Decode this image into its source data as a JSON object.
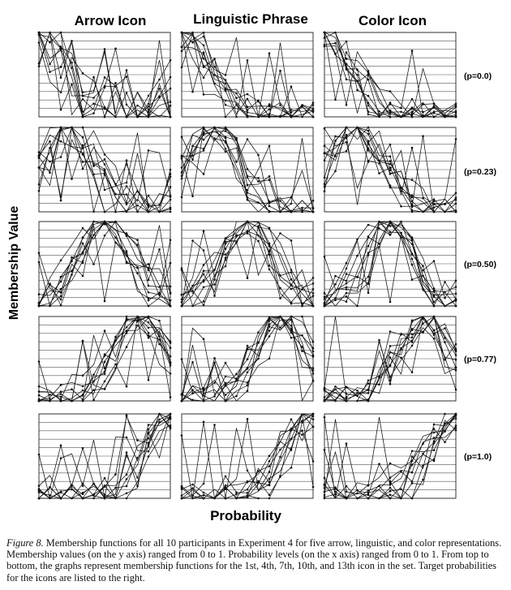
{
  "figure": {
    "column_titles": [
      "Arrow Icon",
      "Linguistic Phrase",
      "Color Icon"
    ],
    "row_labels": [
      "(p=0.0)",
      "(p=0.23)",
      "(p=0.50)",
      "(p=0.77)",
      "(p=1.0)"
    ],
    "y_axis_title": "Membership Value",
    "x_axis_title": "Probability"
  },
  "caption": {
    "lead": "Figure 8.",
    "text": " Membership functions for all 10 participants in Experiment 4 for five arrow, linguistic, and color representations. Membership values (on the y axis) ranged from 0 to 1. Probability levels (on the x axis) ranged from 0 to 1. From top to bottom, the graphs represent membership functions for the 1st, 4th, 7th, 10th, and 13th icon in the set. Target probabilities for the icons are listed to the right."
  },
  "chart_data": {
    "type": "line",
    "layout": "small-multiples 5 rows x 3 columns",
    "columns": [
      "Arrow Icon",
      "Linguistic Phrase",
      "Color Icon"
    ],
    "rows": [
      "(p=0.0)",
      "(p=0.23)",
      "(p=0.50)",
      "(p=0.77)",
      "(p=1.0)"
    ],
    "xlabel": "Probability",
    "ylabel": "Membership Value",
    "xlim": [
      0,
      1
    ],
    "ylim": [
      0,
      1
    ],
    "x": [
      0,
      0.0833,
      0.1667,
      0.25,
      0.3333,
      0.4167,
      0.5,
      0.5833,
      0.6667,
      0.75,
      0.8333,
      0.9167,
      1
    ],
    "grid": "horizontal",
    "participants_per_panel": 10,
    "panel_peaks": [
      [
        0.0,
        0.0,
        0.0
      ],
      [
        0.23,
        0.23,
        0.23
      ],
      [
        0.5,
        0.5,
        0.5
      ],
      [
        0.77,
        0.77,
        0.77
      ],
      [
        1.0,
        1.0,
        1.0
      ]
    ],
    "panels": [
      {
        "row": "(p=0.0)",
        "column": "Arrow Icon",
        "shape": "decreasing; much scatter with spikes",
        "peak": 0.0
      },
      {
        "row": "(p=0.0)",
        "column": "Linguistic Phrase",
        "shape": "decreasing",
        "peak": 0.0
      },
      {
        "row": "(p=0.0)",
        "column": "Color Icon",
        "shape": "decreasing",
        "peak": 0.0
      },
      {
        "row": "(p=0.23)",
        "column": "Arrow Icon",
        "shape": "peak near 0.25",
        "peak": 0.23
      },
      {
        "row": "(p=0.23)",
        "column": "Linguistic Phrase",
        "shape": "peak near 0.25",
        "peak": 0.23
      },
      {
        "row": "(p=0.23)",
        "column": "Color Icon",
        "shape": "peak near 0.3",
        "peak": 0.23
      },
      {
        "row": "(p=0.50)",
        "column": "Arrow Icon",
        "shape": "peak near 0.5",
        "peak": 0.5
      },
      {
        "row": "(p=0.50)",
        "column": "Linguistic Phrase",
        "shape": "peak near 0.5",
        "peak": 0.5
      },
      {
        "row": "(p=0.50)",
        "column": "Color Icon",
        "shape": "peak near 0.5",
        "peak": 0.5
      },
      {
        "row": "(p=0.77)",
        "column": "Arrow Icon",
        "shape": "peak near 0.75",
        "peak": 0.77
      },
      {
        "row": "(p=0.77)",
        "column": "Linguistic Phrase",
        "shape": "peak near 0.8",
        "peak": 0.77
      },
      {
        "row": "(p=0.77)",
        "column": "Color Icon",
        "shape": "peak near 0.8",
        "peak": 0.77
      },
      {
        "row": "(p=1.0)",
        "column": "Arrow Icon",
        "shape": "increasing",
        "peak": 1.0
      },
      {
        "row": "(p=1.0)",
        "column": "Linguistic Phrase",
        "shape": "increasing",
        "peak": 1.0
      },
      {
        "row": "(p=1.0)",
        "column": "Color Icon",
        "shape": "increasing",
        "peak": 1.0
      }
    ]
  }
}
